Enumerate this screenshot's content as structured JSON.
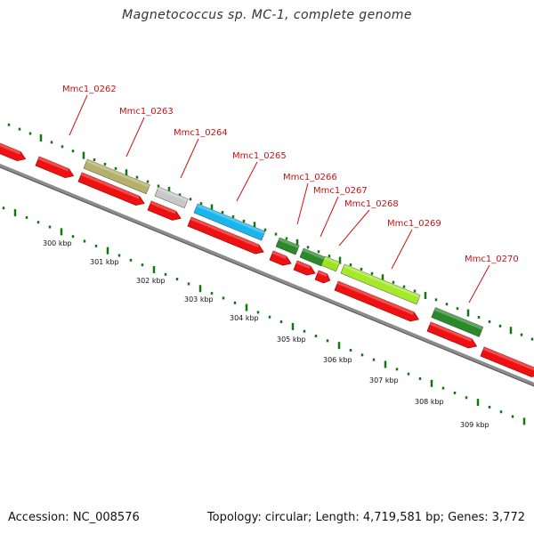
{
  "title": "Magnetococcus sp. MC-1, complete genome",
  "footer": {
    "accession": "Accession: NC_008576",
    "summary": "Topology: circular; Length: 4,719,581 bp; Genes: 3,772"
  },
  "colors": {
    "backbone": "#8c8c8c",
    "cds": "#ee1111",
    "label": "#cc1111",
    "ticks": "#117711"
  },
  "scale_labels": [
    "300 kbp",
    "301 kbp",
    "302 kbp",
    "303 kbp",
    "304 kbp",
    "305 kbp",
    "306 kbp",
    "307 kbp",
    "308 kbp",
    "309 kbp"
  ],
  "genes": [
    {
      "label": "Mmc1_0262",
      "color": "#b5b06a"
    },
    {
      "label": "Mmc1_0263",
      "color": "#c8c8c8"
    },
    {
      "label": "Mmc1_0264",
      "color": "#19b5ee"
    },
    {
      "label": "Mmc1_0265",
      "color": "#2a8a2a"
    },
    {
      "label": "Mmc1_0266",
      "color": "#2a8a2a"
    },
    {
      "label": "Mmc1_0267",
      "color": "#9ee21e"
    },
    {
      "label": "Mmc1_0268",
      "color": "#2a8a2a"
    },
    {
      "label": "Mmc1_0269",
      "color": "#a6e82a"
    },
    {
      "label": "Mmc1_0270",
      "color": "#2a8a2a"
    }
  ]
}
